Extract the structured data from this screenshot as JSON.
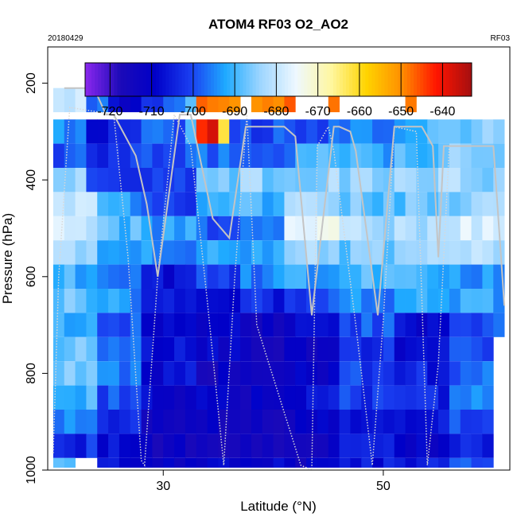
{
  "chart_data": {
    "type": "heatmap",
    "title": "ATOM4 RF03 O2_AO2",
    "date_label": "20180429",
    "flight_label": "RF03",
    "xlabel": "Latitude (°N)",
    "ylabel": "Pressure (hPa)",
    "xlim": [
      19.5,
      61.5
    ],
    "ylim": [
      1000,
      125
    ],
    "x_ticks": [
      30,
      50
    ],
    "y_ticks": [
      200,
      400,
      600,
      800,
      1000
    ],
    "colorbar": {
      "range": [
        -726,
        -633
      ],
      "ticks": [
        -720,
        -710,
        -700,
        -690,
        -680,
        -670,
        -660,
        -650,
        -640
      ],
      "colors": [
        "#8b28ee",
        "#1c0ab8",
        "#0000c8",
        "#1a3ef0",
        "#1faaff",
        "#9fd6ff",
        "#eef8ff",
        "#fff7a0",
        "#ffd400",
        "#ff8f00",
        "#ff1400",
        "#a50f10"
      ]
    },
    "z_unit": "O2_AO2",
    "x_bin_deg": 1,
    "y_bin_hPa": 50,
    "y_levels": [
      200,
      300,
      350,
      400,
      450,
      500,
      550,
      600,
      650,
      700,
      750,
      800,
      850,
      900,
      950,
      1000
    ],
    "bands": [
      {
        "p": 200,
        "seg": [
          [
            20,
            23,
            -681
          ],
          [
            23,
            25,
            -695
          ],
          [
            25,
            28,
            -709
          ],
          [
            28,
            32,
            -700
          ],
          [
            32,
            33,
            -690
          ],
          [
            33,
            37,
            -649
          ],
          [
            38,
            42,
            -649
          ],
          [
            45,
            46,
            -649
          ],
          [
            52,
            53,
            -649
          ]
        ]
      },
      {
        "p": 300,
        "seg": [
          [
            20,
            23,
            -694
          ],
          [
            23,
            25,
            -709
          ],
          [
            25,
            28,
            -700
          ],
          [
            28,
            30,
            -697
          ],
          [
            30,
            32,
            -698
          ],
          [
            32,
            33,
            -690
          ],
          [
            33,
            35,
            -640
          ],
          [
            35,
            36,
            -665
          ],
          [
            36,
            40,
            -700
          ],
          [
            40,
            47,
            -698
          ],
          [
            47,
            52,
            -695
          ],
          [
            52,
            56,
            -690
          ],
          [
            56,
            61,
            -685
          ]
        ]
      },
      {
        "p": 350,
        "seg": [
          [
            20,
            23,
            -698
          ],
          [
            23,
            28,
            -703
          ],
          [
            28,
            33,
            -699
          ],
          [
            33,
            37,
            -697
          ],
          [
            37,
            42,
            -699
          ],
          [
            42,
            45,
            -690
          ],
          [
            45,
            51,
            -692
          ],
          [
            51,
            56,
            -689
          ],
          [
            56,
            61,
            -685
          ]
        ]
      },
      {
        "p": 400,
        "seg": [
          [
            20,
            23,
            -684
          ],
          [
            23,
            28,
            -701
          ],
          [
            28,
            33,
            -701
          ],
          [
            33,
            37,
            -688
          ],
          [
            37,
            41,
            -685
          ],
          [
            41,
            46,
            -684
          ],
          [
            46,
            51,
            -686
          ],
          [
            51,
            56,
            -684
          ],
          [
            56,
            61,
            -684
          ]
        ]
      },
      {
        "p": 450,
        "seg": [
          [
            20,
            24,
            -680
          ],
          [
            24,
            28,
            -693
          ],
          [
            28,
            33,
            -700
          ],
          [
            33,
            37,
            -693
          ],
          [
            37,
            41,
            -691
          ],
          [
            41,
            46,
            -683
          ],
          [
            46,
            51,
            -688
          ],
          [
            51,
            56,
            -688
          ],
          [
            56,
            61,
            -685
          ]
        ]
      },
      {
        "p": 500,
        "seg": [
          [
            20,
            24,
            -679
          ],
          [
            24,
            28,
            -689
          ],
          [
            28,
            33,
            -693
          ],
          [
            33,
            37,
            -698
          ],
          [
            37,
            41,
            -694
          ],
          [
            41,
            46,
            -676
          ],
          [
            46,
            51,
            -683
          ],
          [
            51,
            56,
            -681
          ],
          [
            56,
            61,
            -679
          ]
        ]
      },
      {
        "p": 550,
        "seg": [
          [
            20,
            24,
            -684
          ],
          [
            24,
            28,
            -692
          ],
          [
            28,
            33,
            -695
          ],
          [
            33,
            37,
            -693
          ],
          [
            37,
            41,
            -691
          ],
          [
            41,
            46,
            -682
          ],
          [
            46,
            51,
            -687
          ],
          [
            51,
            56,
            -685
          ],
          [
            56,
            61,
            -683
          ]
        ]
      },
      {
        "p": 600,
        "seg": [
          [
            20,
            24,
            -691
          ],
          [
            24,
            28,
            -697
          ],
          [
            28,
            33,
            -708
          ],
          [
            33,
            37,
            -700
          ],
          [
            37,
            41,
            -696
          ],
          [
            41,
            46,
            -692
          ],
          [
            46,
            51,
            -690
          ],
          [
            51,
            56,
            -692
          ],
          [
            56,
            61,
            -693
          ]
        ]
      },
      {
        "p": 650,
        "seg": [
          [
            20,
            24,
            -688
          ],
          [
            24,
            28,
            -694
          ],
          [
            28,
            33,
            -708
          ],
          [
            33,
            37,
            -706
          ],
          [
            37,
            41,
            -704
          ],
          [
            41,
            46,
            -700
          ],
          [
            46,
            51,
            -695
          ],
          [
            51,
            56,
            -693
          ],
          [
            56,
            61,
            -692
          ]
        ]
      },
      {
        "p": 700,
        "seg": [
          [
            20,
            24,
            -690
          ],
          [
            24,
            28,
            -698
          ],
          [
            28,
            33,
            -708
          ],
          [
            33,
            37,
            -710
          ],
          [
            37,
            41,
            -712
          ],
          [
            41,
            46,
            -708
          ],
          [
            46,
            51,
            -700
          ],
          [
            51,
            56,
            -709
          ],
          [
            56,
            61,
            -699
          ]
        ]
      },
      {
        "p": 750,
        "seg": [
          [
            20,
            24,
            -686
          ],
          [
            24,
            28,
            -696
          ],
          [
            28,
            33,
            -706
          ],
          [
            33,
            37,
            -710
          ],
          [
            37,
            41,
            -715
          ],
          [
            41,
            46,
            -713
          ],
          [
            46,
            51,
            -704
          ],
          [
            51,
            56,
            -708
          ],
          [
            56,
            60,
            -700
          ]
        ]
      },
      {
        "p": 800,
        "seg": [
          [
            20,
            24,
            -688
          ],
          [
            24,
            28,
            -697
          ],
          [
            28,
            33,
            -708
          ],
          [
            33,
            37,
            -713
          ],
          [
            37,
            41,
            -711
          ],
          [
            41,
            46,
            -710
          ],
          [
            46,
            51,
            -701
          ],
          [
            51,
            56,
            -705
          ],
          [
            56,
            60,
            -697
          ]
        ]
      },
      {
        "p": 850,
        "seg": [
          [
            20,
            24,
            -691
          ],
          [
            24,
            28,
            -700
          ],
          [
            28,
            33,
            -710
          ],
          [
            33,
            37,
            -711
          ],
          [
            37,
            41,
            -712
          ],
          [
            41,
            46,
            -708
          ],
          [
            46,
            51,
            -702
          ],
          [
            51,
            56,
            -704
          ],
          [
            56,
            60,
            -697
          ]
        ]
      },
      {
        "p": 900,
        "seg": [
          [
            20,
            24,
            -696
          ],
          [
            24,
            28,
            -703
          ],
          [
            28,
            33,
            -712
          ],
          [
            33,
            37,
            -713
          ],
          [
            37,
            41,
            -714
          ],
          [
            41,
            46,
            -711
          ],
          [
            46,
            51,
            -704
          ],
          [
            51,
            56,
            -707
          ],
          [
            56,
            60,
            -700
          ]
        ]
      },
      {
        "p": 950,
        "seg": [
          [
            20,
            24,
            -703
          ],
          [
            24,
            28,
            -708
          ],
          [
            28,
            33,
            -714
          ],
          [
            33,
            37,
            -716
          ],
          [
            37,
            41,
            -716
          ],
          [
            41,
            46,
            -712
          ],
          [
            46,
            51,
            -707
          ],
          [
            51,
            56,
            -710
          ],
          [
            56,
            60,
            -704
          ]
        ]
      },
      {
        "p": 1000,
        "seg": [
          [
            20,
            22,
            -691
          ],
          [
            24,
            28,
            -708
          ],
          [
            28,
            33,
            -712
          ],
          [
            33,
            37,
            -711
          ],
          [
            37,
            41,
            -710
          ],
          [
            41,
            46,
            -712
          ],
          [
            46,
            51,
            -706
          ],
          [
            51,
            56,
            -704
          ],
          [
            56,
            60,
            -701
          ]
        ]
      }
    ],
    "flight_track": {
      "solid_latitude": [
        21,
        23,
        24,
        24.8,
        25.5,
        27.5,
        28.5,
        29.5,
        31.5,
        32.5,
        34.5,
        36,
        37.5,
        39.5,
        41,
        42,
        43.5,
        45.5,
        46,
        47,
        47.5,
        49.5,
        51,
        52,
        53.5,
        54.5,
        55,
        55.5,
        57,
        60,
        61
      ],
      "solid_pressure": [
        210,
        210,
        225,
        265,
        265,
        350,
        450,
        600,
        265,
        265,
        480,
        520,
        290,
        290,
        290,
        310,
        680,
        290,
        290,
        300,
        340,
        680,
        290,
        290,
        290,
        330,
        560,
        330,
        330,
        330,
        660
      ],
      "dotted_latitude": [
        20,
        20.5,
        21.5,
        25.5,
        26.8,
        28,
        28.3,
        29.5,
        31,
        32.5,
        34,
        35.5,
        36.5,
        37.6,
        38.5,
        42.5,
        43.5,
        44,
        45,
        45.5,
        47.5,
        49,
        50,
        51,
        53,
        54,
        55,
        56
      ],
      "dotted_pressure": [
        965,
        600,
        250,
        265,
        560,
        980,
        990,
        600,
        265,
        330,
        650,
        990,
        600,
        265,
        700,
        990,
        1000,
        330,
        290,
        340,
        700,
        990,
        690,
        290,
        300,
        990,
        780,
        330
      ]
    }
  }
}
